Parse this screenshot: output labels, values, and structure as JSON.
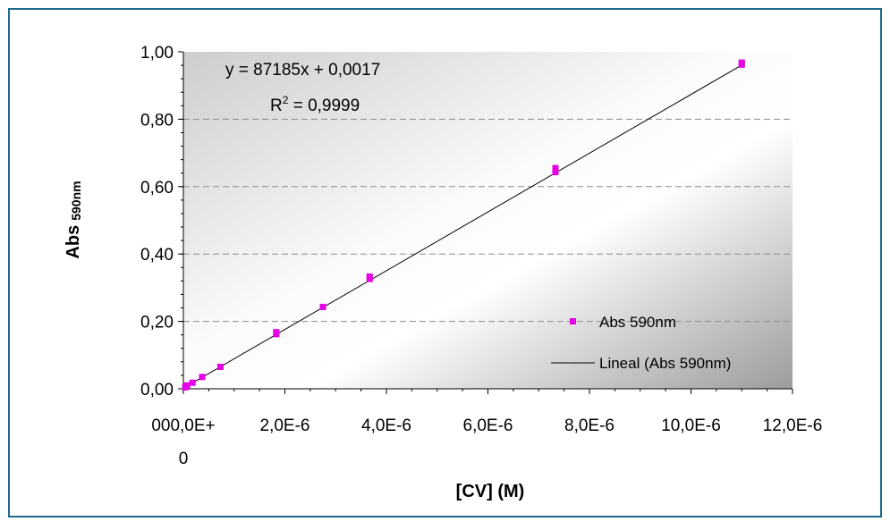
{
  "chart_data": {
    "type": "scatter",
    "xlabel": "[CV] (M)",
    "ylabel_main": "Abs",
    "ylabel_sub": "590nm",
    "xlim": [
      0,
      1.2e-05
    ],
    "ylim": [
      0,
      1.0
    ],
    "x_ticks": [
      0,
      2e-06,
      4e-06,
      6e-06,
      8e-06,
      1e-05,
      1.2e-05
    ],
    "x_tick_labels": [
      "000,0E+",
      "2,0E-6",
      "4,0E-6",
      "6,0E-6",
      "8,0E-6",
      "10,0E-6",
      "12,0E-6"
    ],
    "x_tick_label_wrap": "0",
    "y_ticks": [
      0,
      0.2,
      0.4,
      0.6,
      0.8,
      1.0
    ],
    "y_tick_labels": [
      "0,00",
      "0,20",
      "0,40",
      "0,60",
      "0,80",
      "1,00"
    ],
    "grid": "horizontal-dashed",
    "series": [
      {
        "name": "Abs 590nm",
        "color": "#e600e6",
        "points": [
          [
            3.7e-08,
            0.004
          ],
          [
            7.3e-08,
            0.01
          ],
          [
            1.8e-07,
            0.018
          ],
          [
            3.7e-07,
            0.035
          ],
          [
            7.3e-07,
            0.065
          ],
          [
            1.83e-06,
            0.162
          ],
          [
            1.83e-06,
            0.168
          ],
          [
            2.75e-06,
            0.243
          ],
          [
            3.67e-06,
            0.326
          ],
          [
            3.67e-06,
            0.333
          ],
          [
            7.33e-06,
            0.643
          ],
          [
            7.33e-06,
            0.655
          ],
          [
            1.1e-05,
            0.962
          ],
          [
            1.1e-05,
            0.968
          ]
        ]
      }
    ],
    "trendline": {
      "name": "Lineal (Abs 590nm)",
      "slope": 87185,
      "intercept": 0.0017,
      "x_range": [
        0,
        1.1e-05
      ],
      "color": "#000000"
    },
    "equation_text": "y = 87185x + 0,0017",
    "r2_prefix": "R",
    "r2_exp": "2",
    "r2_value": " = 0,9999",
    "legend_position": "bottom-right"
  }
}
